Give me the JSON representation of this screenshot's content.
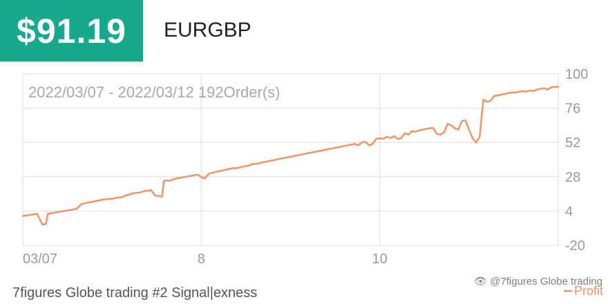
{
  "header": {
    "profit": "$91.19",
    "symbol": "EURGBP"
  },
  "footer": {
    "signal_name": "7figures Globe trading #2 Signal|exness"
  },
  "watermark": {
    "text": "@7figures Globe trading",
    "icon": "weibo-logo-icon"
  },
  "colors": {
    "accent": "#17a88e",
    "line": "#ef9468",
    "grid": "#e6e6e6",
    "axis_text": "#9a9a9a"
  },
  "chart_data": {
    "type": "line",
    "title": "2022/03/07 - 2022/03/12 192Order(s)",
    "xlabel": "",
    "ylabel": "",
    "ylim": [
      -20,
      100
    ],
    "yticks": [
      100,
      76,
      52,
      28,
      4,
      -20
    ],
    "xtick_labels": [
      "03/07",
      "8",
      "10"
    ],
    "xlim": [
      0,
      3
    ],
    "xticks": [
      0,
      1,
      2
    ],
    "grid": true,
    "legend": {
      "position": "bottom-right",
      "entries": [
        "Profit"
      ]
    },
    "series": [
      {
        "name": "Profit",
        "x": [
          0,
          0.08,
          0.11,
          0.13,
          0.14,
          0.3,
          0.33,
          0.45,
          0.48,
          0.5,
          0.53,
          0.55,
          0.59,
          0.6,
          0.62,
          0.66,
          0.68,
          0.72,
          0.74,
          0.78,
          0.79,
          0.81,
          0.82,
          0.85,
          0.98,
          1.01,
          1.02,
          1.04,
          1.07,
          1.14,
          1.18,
          1.2,
          1.23,
          1.27,
          1.29,
          1.31,
          1.34,
          1.38,
          1.42,
          1.46,
          1.5,
          1.54,
          1.58,
          1.62,
          1.66,
          1.7,
          1.74,
          1.78,
          1.82,
          1.86,
          1.88,
          1.9,
          1.92,
          1.94,
          1.96,
          1.98,
          2.0,
          2.02,
          2.04,
          2.06,
          2.08,
          2.1,
          2.12,
          2.14,
          2.16,
          2.18,
          2.2,
          2.22,
          2.24,
          2.26,
          2.28,
          2.3,
          2.32,
          2.34,
          2.36,
          2.38,
          2.4,
          2.42,
          2.44,
          2.46,
          2.48,
          2.5,
          2.52,
          2.54,
          2.56,
          2.58,
          2.6,
          2.62,
          2.64,
          2.66,
          2.68,
          2.7,
          2.72,
          2.74,
          2.76,
          2.78,
          2.8,
          2.82,
          2.84,
          2.86,
          2.88,
          2.9,
          2.92,
          2.94,
          2.96,
          2.98,
          3.0
        ],
        "values": [
          0.5,
          2,
          -5.5,
          -5,
          2,
          5.5,
          9,
          12,
          12.5,
          12.5,
          13.5,
          13.5,
          15.5,
          15.5,
          16.5,
          17,
          18,
          18.5,
          15,
          14,
          25,
          25.5,
          25,
          26.5,
          29.5,
          27,
          27,
          30,
          31,
          33,
          34,
          34,
          35,
          36,
          37,
          37,
          38,
          39,
          40,
          41,
          42,
          43,
          44,
          45,
          46,
          47,
          48,
          49,
          50,
          51,
          50,
          52,
          52.5,
          50,
          51,
          54.5,
          55,
          54.5,
          56,
          55,
          56.5,
          54.5,
          55,
          58.5,
          57.5,
          60,
          59.5,
          60.5,
          61,
          61.5,
          62,
          62,
          58,
          57.5,
          59,
          65,
          64,
          62,
          61,
          67,
          67.5,
          61,
          55,
          52,
          56,
          82,
          80.5,
          81,
          84.5,
          85,
          85.5,
          86,
          86.5,
          87,
          87,
          87.5,
          88,
          87.5,
          88.5,
          88,
          89,
          89.5,
          90,
          89,
          90.5,
          91,
          91
        ]
      }
    ]
  }
}
